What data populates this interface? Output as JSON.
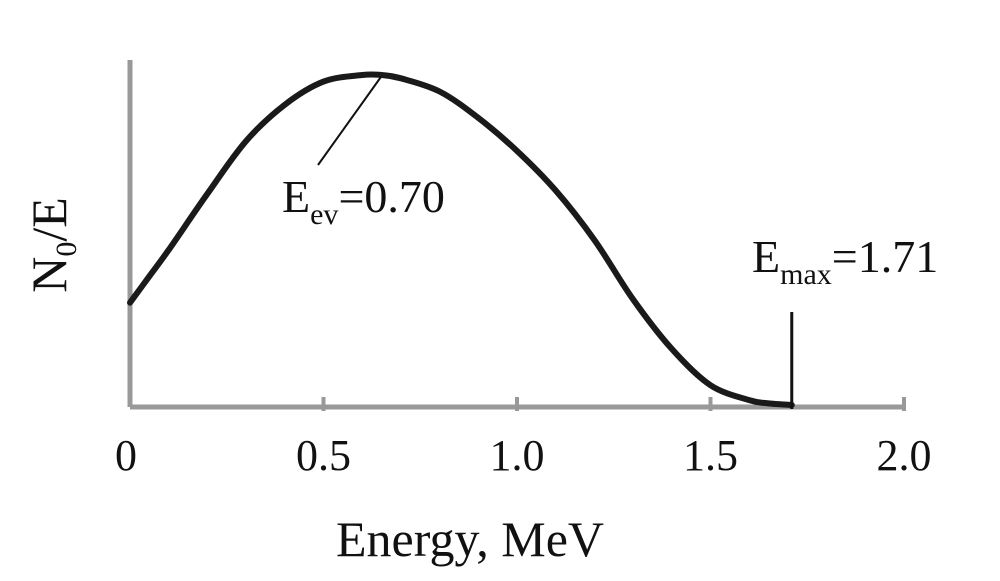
{
  "chart_data": {
    "type": "line",
    "title": "",
    "xlabel": "Energy, MeV",
    "ylabel": {
      "main": "N",
      "sub": "0",
      "rest": "/E"
    },
    "xlim": [
      0,
      2.0
    ],
    "x_ticks": [
      0,
      0.5,
      1.0,
      1.5,
      2.0
    ],
    "x_tick_labels": [
      "0",
      "0.5",
      "1.0",
      "1.5",
      "2.0"
    ],
    "y_ticks_shown": false,
    "grid": false,
    "series": [
      {
        "x": [
          0,
          0.05,
          0.1,
          0.2,
          0.3,
          0.4,
          0.5,
          0.6,
          0.65,
          0.7,
          0.8,
          0.9,
          1.0,
          1.1,
          1.2,
          1.3,
          1.4,
          1.5,
          1.6,
          1.65,
          1.71
        ],
        "y": [
          0.31,
          0.39,
          0.47,
          0.64,
          0.8,
          0.91,
          0.98,
          1.0,
          1.0,
          0.99,
          0.95,
          0.87,
          0.77,
          0.65,
          0.5,
          0.32,
          0.17,
          0.06,
          0.015,
          0.005,
          0.0
        ],
        "color": "#1a1a1a"
      }
    ],
    "annotations": [
      {
        "main": "E",
        "sub": "ev",
        "rest": "=0.70",
        "x": 0.7,
        "y": 1.0
      },
      {
        "main": "E",
        "sub": "max",
        "rest": "=1.71",
        "x": 1.71,
        "y": 0.0
      }
    ],
    "colors": {
      "curve": "#1a1a1a",
      "axis": "#999999",
      "text": "#111111"
    }
  }
}
